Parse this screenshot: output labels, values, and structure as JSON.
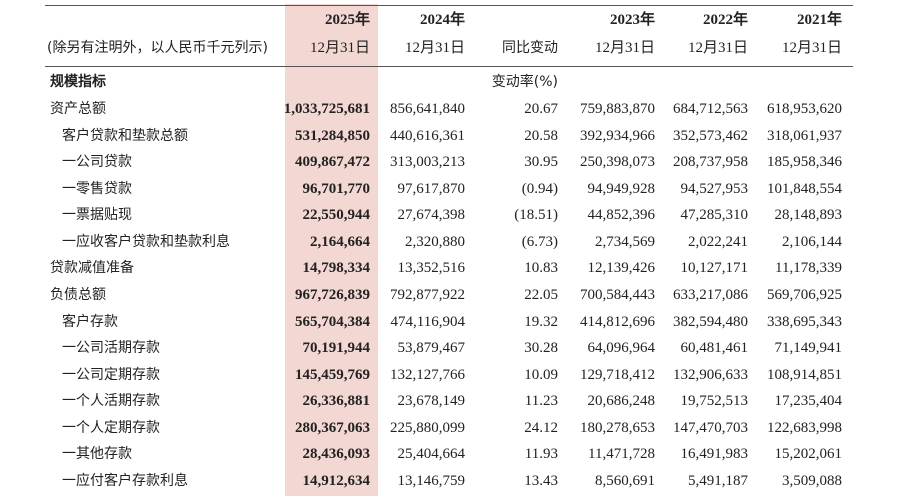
{
  "header": {
    "years": [
      "2025年",
      "2024年",
      "2023年",
      "2022年",
      "2021年"
    ],
    "labels": [
      "(除另有注明外，以人民币千元列示)",
      "12月31日",
      "12月31日",
      "同比变动",
      "12月31日",
      "12月31日",
      "12月31日"
    ]
  },
  "section": {
    "title": "规模指标",
    "change_label": "变动率(%)"
  },
  "table": {
    "rows": [
      [
        "资产总额",
        "1,033,725,681",
        "856,641,840",
        "20.67",
        "759,883,870",
        "684,712,563",
        "618,953,620"
      ],
      [
        "客户贷款和垫款总额",
        "531,284,850",
        "440,616,361",
        "20.58",
        "392,934,966",
        "352,573,462",
        "318,061,937"
      ],
      [
        "一公司贷款",
        "409,867,472",
        "313,003,213",
        "30.95",
        "250,398,073",
        "208,737,958",
        "185,958,346"
      ],
      [
        "一零售贷款",
        "96,701,770",
        "97,617,870",
        "(0.94)",
        "94,949,928",
        "94,527,953",
        "101,848,554"
      ],
      [
        "一票据贴现",
        "22,550,944",
        "27,674,398",
        "(18.51)",
        "44,852,396",
        "47,285,310",
        "28,148,893"
      ],
      [
        "一应收客户贷款和垫款利息",
        "2,164,664",
        "2,320,880",
        "(6.73)",
        "2,734,569",
        "2,022,241",
        "2,106,144"
      ],
      [
        "贷款减值准备",
        "14,798,334",
        "13,352,516",
        "10.83",
        "12,139,426",
        "10,127,171",
        "11,178,339"
      ],
      [
        "负债总额",
        "967,726,839",
        "792,877,922",
        "22.05",
        "700,584,443",
        "633,217,086",
        "569,706,925"
      ],
      [
        "客户存款",
        "565,704,384",
        "474,116,904",
        "19.32",
        "414,812,696",
        "382,594,480",
        "338,695,343"
      ],
      [
        "一公司活期存款",
        "70,191,944",
        "53,879,467",
        "30.28",
        "64,096,964",
        "60,481,461",
        "71,149,941"
      ],
      [
        "一公司定期存款",
        "145,459,769",
        "132,127,766",
        "10.09",
        "129,718,412",
        "132,906,633",
        "108,914,851"
      ],
      [
        "一个人活期存款",
        "26,336,881",
        "23,678,149",
        "11.23",
        "20,686,248",
        "19,752,513",
        "17,235,404"
      ],
      [
        "一个人定期存款",
        "280,367,063",
        "225,880,099",
        "24.12",
        "180,278,653",
        "147,470,703",
        "122,683,998"
      ],
      [
        "一其他存款",
        "28,436,093",
        "25,404,664",
        "11.93",
        "11,471,728",
        "16,491,983",
        "15,202,061"
      ],
      [
        "一应付客户存款利息",
        "14,912,634",
        "13,146,759",
        "13.43",
        "8,560,691",
        "5,491,187",
        "3,509,088"
      ]
    ]
  }
}
